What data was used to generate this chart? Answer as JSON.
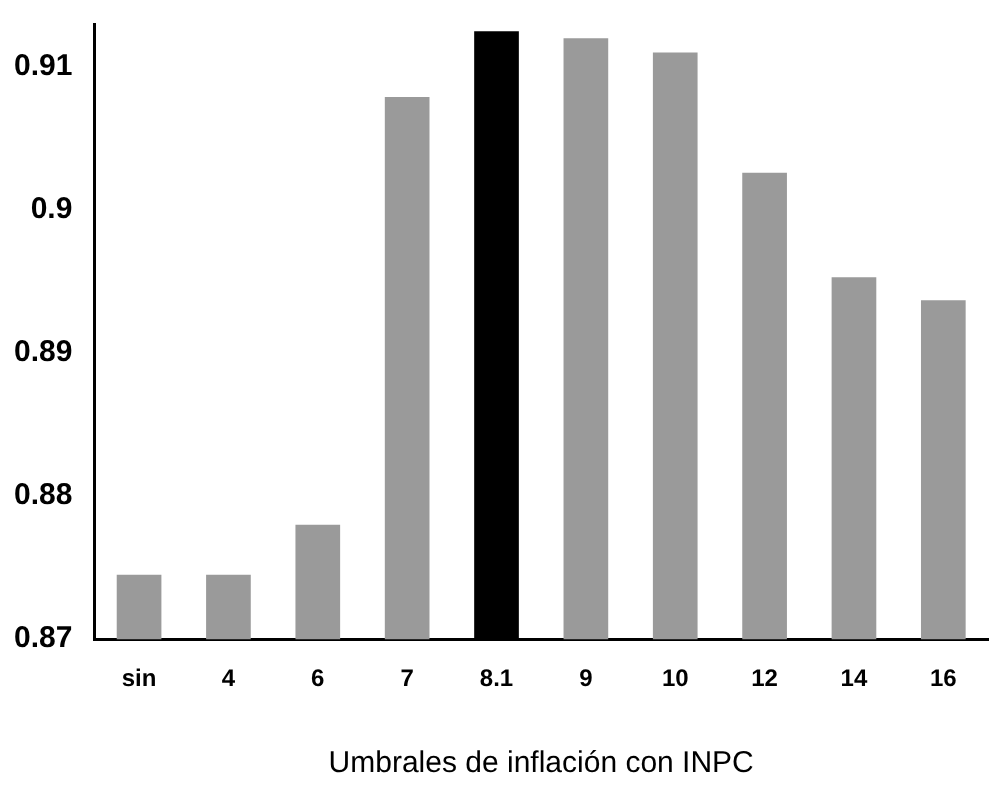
{
  "chart_data": {
    "type": "bar",
    "xlabel": "Umbrales de inflación con INPC",
    "categories": [
      "sin",
      "4",
      "6",
      "7",
      "8.1",
      "9",
      "10",
      "12",
      "14",
      "16"
    ],
    "values": [
      0.8745,
      0.8745,
      0.878,
      0.9079,
      0.9125,
      0.912,
      0.911,
      0.9026,
      0.8953,
      0.8937
    ],
    "colors": [
      "#9a9a9a",
      "#9a9a9a",
      "#9a9a9a",
      "#9a9a9a",
      "#000000",
      "#9a9a9a",
      "#9a9a9a",
      "#9a9a9a",
      "#9a9a9a",
      "#9a9a9a"
    ],
    "ylim": [
      0.87,
      0.913
    ],
    "yticks": [
      0.87,
      0.88,
      0.89,
      0.9,
      0.91
    ],
    "grid": false,
    "legend": false
  }
}
